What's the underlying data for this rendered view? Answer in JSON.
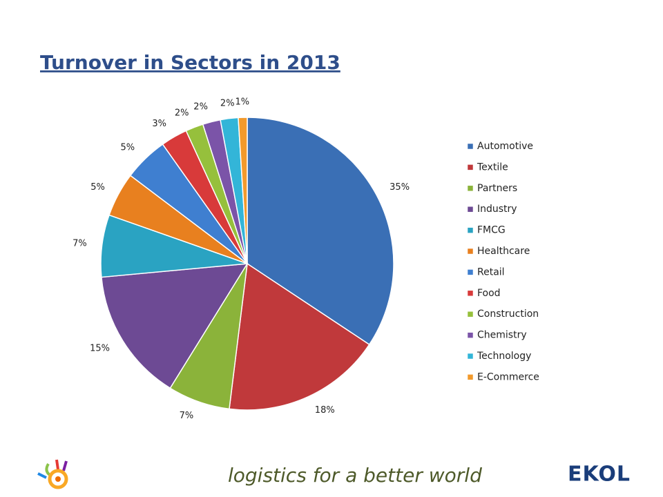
{
  "chart_data": {
    "type": "pie",
    "title": "Turnover in Sectors in 2013",
    "categories": [
      "Automotive",
      "Textile",
      "Partners",
      "Industry",
      "FMCG",
      "Healthcare",
      "Retail",
      "Food",
      "Construction",
      "Chemistry",
      "Technology",
      "E-Commerce"
    ],
    "values": [
      35,
      18,
      7,
      15,
      7,
      5,
      5,
      3,
      2,
      2,
      2,
      1
    ],
    "value_labels": [
      "35%",
      "18%",
      "7%",
      "15%",
      "7%",
      "5%",
      "5%",
      "3%",
      "2%",
      "2%",
      "2%",
      "1%"
    ],
    "colors": [
      "#3a6fb5",
      "#c0393b",
      "#8bb33a",
      "#6d4a94",
      "#2aa3c2",
      "#e8801f",
      "#3f7fd0",
      "#d83a3a",
      "#96c03c",
      "#7b54a8",
      "#33b5d8",
      "#f29a2c"
    ],
    "legend": "right"
  },
  "footer": {
    "tagline": "logistics for a better world",
    "logo": "EKOL"
  }
}
